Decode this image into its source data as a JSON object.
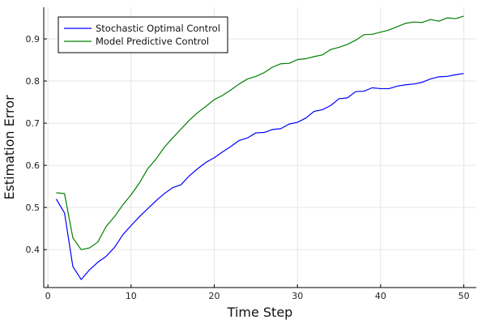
{
  "chart_data": {
    "type": "line",
    "title": "",
    "xlabel": "Time Step",
    "ylabel": "Estimation Error",
    "xlim": [
      -0.5,
      51.5
    ],
    "ylim": [
      0.31,
      0.975
    ],
    "xticks": [
      0,
      10,
      20,
      30,
      40,
      50
    ],
    "yticks": [
      0.4,
      0.5,
      0.6,
      0.7,
      0.8,
      0.9
    ],
    "xtick_labels": [
      "0",
      "10",
      "20",
      "30",
      "40",
      "50"
    ],
    "ytick_labels": [
      "0.4",
      "0.5",
      "0.6",
      "0.7",
      "0.8",
      "0.9"
    ],
    "grid": true,
    "legend_position": "top-left",
    "x": [
      1,
      2,
      3,
      4,
      5,
      6,
      7,
      8,
      9,
      10,
      11,
      12,
      13,
      14,
      15,
      16,
      17,
      18,
      19,
      20,
      21,
      22,
      23,
      24,
      25,
      26,
      27,
      28,
      29,
      30,
      31,
      32,
      33,
      34,
      35,
      36,
      37,
      38,
      39,
      40,
      41,
      42,
      43,
      44,
      45,
      46,
      47,
      48,
      49,
      50
    ],
    "series": [
      {
        "name": "Stochastic Optimal Control",
        "color": "#0000ff",
        "values": [
          0.52,
          0.487,
          0.36,
          0.329,
          0.352,
          0.37,
          0.384,
          0.405,
          0.435,
          0.457,
          0.478,
          0.497,
          0.516,
          0.533,
          0.547,
          0.554,
          0.575,
          0.592,
          0.607,
          0.618,
          0.632,
          0.645,
          0.659,
          0.665,
          0.677,
          0.678,
          0.685,
          0.687,
          0.698,
          0.702,
          0.712,
          0.728,
          0.732,
          0.742,
          0.758,
          0.76,
          0.775,
          0.776,
          0.784,
          0.782,
          0.782,
          0.788,
          0.791,
          0.793,
          0.797,
          0.805,
          0.81,
          0.811,
          0.815,
          0.818
        ]
      },
      {
        "name": "Model Predictive Control",
        "color": "#008000",
        "values": [
          0.535,
          0.533,
          0.428,
          0.4,
          0.404,
          0.418,
          0.455,
          0.478,
          0.506,
          0.53,
          0.558,
          0.592,
          0.615,
          0.643,
          0.665,
          0.686,
          0.707,
          0.725,
          0.74,
          0.756,
          0.766,
          0.779,
          0.793,
          0.805,
          0.811,
          0.82,
          0.833,
          0.841,
          0.842,
          0.851,
          0.853,
          0.858,
          0.862,
          0.875,
          0.88,
          0.887,
          0.897,
          0.91,
          0.911,
          0.916,
          0.921,
          0.929,
          0.937,
          0.94,
          0.939,
          0.946,
          0.942,
          0.95,
          0.948,
          0.954
        ]
      }
    ]
  }
}
